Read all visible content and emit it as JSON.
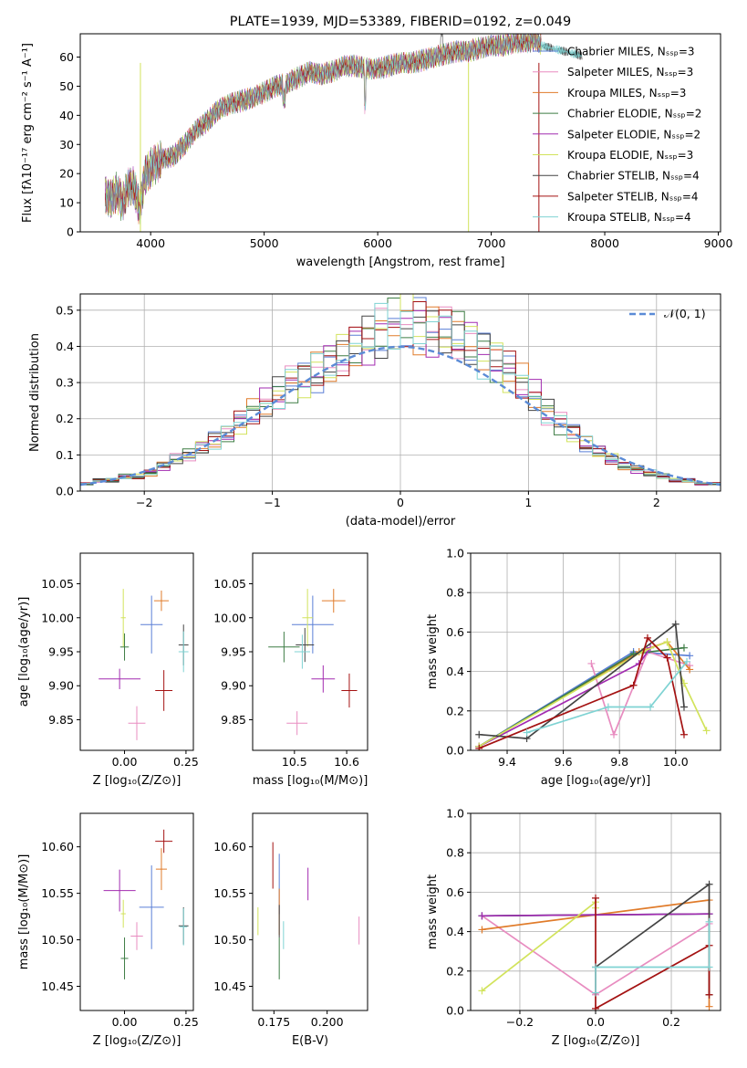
{
  "colors": [
    "#5a7fd6",
    "#e88cc0",
    "#e07b2a",
    "#3e7d45",
    "#a22bb0",
    "#d2e35c",
    "#444444",
    "#a41212",
    "#7fd3d3"
  ],
  "chart_data": [
    {
      "id": "spectrum",
      "type": "line",
      "title": "PLATE=1939, MJD=53389, FIBERID=0192, z=0.049",
      "xlabel": "wavelength [Angstrom, rest frame]",
      "ylabel": "Flux [fλ10⁻¹⁷ erg cm⁻² s⁻¹ A⁻¹]",
      "xlim": [
        3380,
        9020
      ],
      "ylim": [
        0,
        68
      ],
      "xticks": [
        4000,
        5000,
        6000,
        7000,
        8000,
        9000
      ],
      "yticks": [
        0,
        10,
        20,
        30,
        40,
        50,
        60
      ],
      "legend_position": "top-right",
      "legend": [
        "Chabrier MILES, Nₛₛₚ=3",
        "Salpeter MILES, Nₛₛₚ=3",
        "Kroupa MILES, Nₛₛₚ=3",
        "Chabrier ELODIE, Nₛₛₚ=2",
        "Salpeter ELODIE, Nₛₛₚ=2",
        "Kroupa ELODIE, Nₛₛₚ=3",
        "Chabrier STELIB, Nₛₛₚ=4",
        "Salpeter STELIB, Nₛₛₚ=4",
        "Kroupa STELIB, Nₛₛₚ=4"
      ],
      "x": [
        3600,
        3650,
        3700,
        3750,
        3800,
        3850,
        3900,
        3950,
        4000,
        4100,
        4200,
        4300,
        4400,
        4500,
        4600,
        4700,
        4800,
        4900,
        5000,
        5100,
        5200,
        5300,
        5400,
        5500,
        5600,
        5700,
        5800,
        5900,
        6000,
        6100,
        6200,
        6300,
        6400,
        6500,
        6600,
        6700,
        6800,
        6900,
        7000,
        7100,
        7200,
        7300,
        7400,
        7450
      ],
      "y": [
        13,
        11,
        14,
        10,
        15,
        16,
        8,
        19,
        22,
        25,
        26,
        30,
        35,
        38,
        42,
        44,
        45,
        46,
        48,
        50,
        51,
        53,
        55,
        54,
        55,
        57,
        57,
        56,
        56,
        57,
        58,
        58,
        59,
        60,
        61,
        62,
        62,
        63,
        64,
        64,
        65,
        65,
        66,
        64
      ]
    },
    {
      "id": "residual-histogram",
      "type": "line",
      "xlabel": "(data-model)/error",
      "ylabel": "Normed distribution",
      "xlim": [
        -2.5,
        2.5
      ],
      "ylim": [
        0,
        0.545
      ],
      "xticks": [
        -2,
        -1,
        0,
        1,
        2
      ],
      "yticks": [
        0.0,
        0.1,
        0.2,
        0.3,
        0.4,
        0.5
      ],
      "grid": true,
      "legend_position": "top-right",
      "reference_curve": "𝒩(0, 1)",
      "bin_width": 0.1,
      "bins_start": -2.5,
      "values": [
        0.02,
        0.03,
        0.03,
        0.04,
        0.04,
        0.05,
        0.07,
        0.09,
        0.1,
        0.12,
        0.14,
        0.16,
        0.19,
        0.22,
        0.24,
        0.27,
        0.3,
        0.31,
        0.33,
        0.35,
        0.38,
        0.4,
        0.42,
        0.44,
        0.45,
        0.47,
        0.46,
        0.45,
        0.44,
        0.43,
        0.41,
        0.38,
        0.36,
        0.33,
        0.3,
        0.26,
        0.22,
        0.19,
        0.16,
        0.13,
        0.11,
        0.09,
        0.07,
        0.06,
        0.05,
        0.04,
        0.03,
        0.03,
        0.02,
        0.02
      ]
    },
    {
      "id": "age-vs-Z",
      "type": "scatter",
      "xlabel": "Z [log₁₀(Z/Z⊙)]",
      "ylabel": "age  [log₁₀(age/yr)]",
      "xlim": [
        -0.18,
        0.28
      ],
      "ylim": [
        9.805,
        10.095
      ],
      "xticks": [
        0.0,
        0.25
      ],
      "yticks": [
        9.85,
        9.9,
        9.95,
        10.0,
        10.05
      ],
      "points": [
        {
          "x": 0.11,
          "y": 9.99,
          "xe": 0.09,
          "ye": 0.085
        },
        {
          "x": 0.05,
          "y": 9.845,
          "xe": 0.07,
          "ye": 0.05
        },
        {
          "x": 0.15,
          "y": 10.025,
          "xe": 0.06,
          "ye": 0.03
        },
        {
          "x": 0.0,
          "y": 9.957,
          "xe": 0.035,
          "ye": 0.04
        },
        {
          "x": -0.02,
          "y": 9.91,
          "xe": 0.17,
          "ye": 0.03
        },
        {
          "x": -0.005,
          "y": 10.0,
          "xe": 0.02,
          "ye": 0.085
        },
        {
          "x": 0.24,
          "y": 9.96,
          "xe": 0.04,
          "ye": 0.06
        },
        {
          "x": 0.16,
          "y": 9.893,
          "xe": 0.07,
          "ye": 0.06
        },
        {
          "x": 0.24,
          "y": 9.95,
          "xe": 0.04,
          "ye": 0.06
        }
      ]
    },
    {
      "id": "age-vs-mass",
      "type": "scatter",
      "xlabel": "mass [log₁₀(M/M⊙)]",
      "ylabel": "",
      "xlim": [
        10.42,
        10.64
      ],
      "ylim": [
        9.805,
        10.095
      ],
      "xticks": [
        10.5,
        10.6
      ],
      "yticks": [
        9.85,
        9.9,
        9.95,
        10.0,
        10.05
      ],
      "points": [
        {
          "x": 10.535,
          "y": 9.99,
          "xe": 0.08,
          "ye": 0.085
        },
        {
          "x": 10.505,
          "y": 9.845,
          "xe": 0.04,
          "ye": 0.035
        },
        {
          "x": 10.575,
          "y": 10.025,
          "xe": 0.045,
          "ye": 0.035
        },
        {
          "x": 10.48,
          "y": 9.957,
          "xe": 0.06,
          "ye": 0.045
        },
        {
          "x": 10.555,
          "y": 9.91,
          "xe": 0.045,
          "ye": 0.04
        },
        {
          "x": 10.525,
          "y": 10.0,
          "xe": 0.02,
          "ye": 0.085
        },
        {
          "x": 10.52,
          "y": 9.96,
          "xe": 0.035,
          "ye": 0.05
        },
        {
          "x": 10.605,
          "y": 9.893,
          "xe": 0.03,
          "ye": 0.05
        },
        {
          "x": 10.515,
          "y": 9.95,
          "xe": 0.03,
          "ye": 0.05
        }
      ]
    },
    {
      "id": "weight-vs-age",
      "type": "line",
      "xlabel": "age  [log₁₀(age/yr)]",
      "ylabel": "mass weight",
      "xlim": [
        9.27,
        10.16
      ],
      "ylim": [
        0,
        1
      ],
      "xticks": [
        9.4,
        9.6,
        9.8,
        10.0
      ],
      "yticks": [
        0.0,
        0.2,
        0.4,
        0.6,
        0.8,
        1.0
      ],
      "grid": true,
      "series": [
        {
          "x": [
            9.3,
            9.85,
            10.05
          ],
          "y": [
            0.02,
            0.5,
            0.48
          ]
        },
        {
          "x": [
            9.7,
            9.78,
            9.9,
            10.05
          ],
          "y": [
            0.44,
            0.08,
            0.5,
            0.43
          ]
        },
        {
          "x": [
            9.3,
            9.87,
            9.97,
            10.05
          ],
          "y": [
            0.02,
            0.5,
            0.55,
            0.41
          ]
        },
        {
          "x": [
            9.3,
            9.85,
            10.03
          ],
          "y": [
            0.02,
            0.49,
            0.52
          ]
        },
        {
          "x": [
            9.3,
            9.87,
            9.91
          ],
          "y": [
            0.02,
            0.44,
            0.52
          ]
        },
        {
          "x": [
            9.3,
            9.88,
            9.97,
            10.03,
            10.11
          ],
          "y": [
            0.02,
            0.5,
            0.55,
            0.34,
            0.1
          ]
        },
        {
          "x": [
            9.3,
            9.47,
            10.0,
            10.03
          ],
          "y": [
            0.08,
            0.06,
            0.64,
            0.22
          ]
        },
        {
          "x": [
            9.3,
            9.85,
            9.9,
            9.97,
            10.03
          ],
          "y": [
            0.01,
            0.33,
            0.57,
            0.47,
            0.08
          ]
        },
        {
          "x": [
            9.47,
            9.76,
            9.91,
            10.04
          ],
          "y": [
            0.09,
            0.22,
            0.22,
            0.45
          ]
        }
      ]
    },
    {
      "id": "mass-vs-Z",
      "type": "scatter",
      "xlabel": "Z [log₁₀(Z/Z⊙)]",
      "ylabel": "mass [log₁₀(M/M⊙)]",
      "xlim": [
        -0.18,
        0.28
      ],
      "ylim": [
        10.424,
        10.636
      ],
      "xticks": [
        0.0,
        0.25
      ],
      "yticks": [
        10.45,
        10.5,
        10.55,
        10.6
      ],
      "points": [
        {
          "x": 0.11,
          "y": 10.535,
          "xe": 0.1,
          "ye": 0.09
        },
        {
          "x": 0.05,
          "y": 10.504,
          "xe": 0.05,
          "ye": 0.03
        },
        {
          "x": 0.15,
          "y": 10.576,
          "xe": 0.045,
          "ye": 0.045
        },
        {
          "x": 0.0,
          "y": 10.48,
          "xe": 0.03,
          "ye": 0.045
        },
        {
          "x": -0.02,
          "y": 10.553,
          "xe": 0.13,
          "ye": 0.045
        },
        {
          "x": -0.005,
          "y": 10.528,
          "xe": 0.02,
          "ye": 0.03
        },
        {
          "x": 0.24,
          "y": 10.515,
          "xe": 0.04,
          "ye": 0.04
        },
        {
          "x": 0.16,
          "y": 10.606,
          "xe": 0.07,
          "ye": 0.025
        },
        {
          "x": 0.24,
          "y": 10.514,
          "xe": 0.03,
          "ye": 0.04
        }
      ]
    },
    {
      "id": "mass-vs-ebv",
      "type": "scatter",
      "xlabel": "E(B-V)",
      "ylabel": "",
      "xlim": [
        0.165,
        0.219
      ],
      "ylim": [
        10.424,
        10.636
      ],
      "xticks": [
        0.175,
        0.2
      ],
      "yticks": [
        10.45,
        10.5,
        10.55,
        10.6
      ],
      "points": [
        {
          "x": 0.1775,
          "y": 10.56,
          "xe": 0,
          "ye": 0.065
        },
        {
          "x": 0.215,
          "y": 10.51,
          "xe": 0,
          "ye": 0.03
        },
        {
          "x": 0.1775,
          "y": 10.53,
          "xe": 0,
          "ye": 0.05
        },
        {
          "x": 0.1775,
          "y": 10.48,
          "xe": 0,
          "ye": 0.045
        },
        {
          "x": 0.191,
          "y": 10.56,
          "xe": 0,
          "ye": 0.035
        },
        {
          "x": 0.1675,
          "y": 10.52,
          "xe": 0,
          "ye": 0.03
        },
        {
          "x": 0.1775,
          "y": 10.52,
          "xe": 0,
          "ye": 0.035
        },
        {
          "x": 0.1745,
          "y": 10.58,
          "xe": 0,
          "ye": 0.05
        },
        {
          "x": 0.1795,
          "y": 10.505,
          "xe": 0,
          "ye": 0.03
        }
      ]
    },
    {
      "id": "weight-vs-Z",
      "type": "line",
      "xlabel": "Z [log₁₀(Z/Z⊙)]",
      "ylabel": "mass weight",
      "xlim": [
        -0.33,
        0.33
      ],
      "ylim": [
        0,
        1
      ],
      "xticks": [
        -0.2,
        0.0,
        0.2
      ],
      "yticks": [
        0.0,
        0.2,
        0.4,
        0.6,
        0.8,
        1.0
      ],
      "grid": true,
      "series": [
        {
          "x": [
            -0.3,
            0.3
          ],
          "y": [
            0.48,
            0.49
          ]
        },
        {
          "x": [
            -0.3,
            0.0,
            0.3
          ],
          "y": [
            0.48,
            0.08,
            0.44
          ]
        },
        {
          "x": [
            -0.3,
            0.3,
            0.3
          ],
          "y": [
            0.41,
            0.56,
            0.02
          ]
        },
        {
          "x": [
            -0.3,
            0.3
          ],
          "y": [
            0.48,
            0.49
          ]
        },
        {
          "x": [
            -0.3,
            0.3
          ],
          "y": [
            0.48,
            0.49
          ]
        },
        {
          "x": [
            -0.3,
            0.0,
            0.0
          ],
          "y": [
            0.1,
            0.55,
            0.52
          ]
        },
        {
          "x": [
            0.0,
            0.3,
            0.3
          ],
          "y": [
            0.22,
            0.64,
            0.08
          ]
        },
        {
          "x": [
            0.0,
            0.0,
            0.3,
            0.3
          ],
          "y": [
            0.57,
            0.01,
            0.33,
            0.08
          ]
        },
        {
          "x": [
            0.0,
            0.0,
            0.3,
            0.3
          ],
          "y": [
            0.09,
            0.22,
            0.22,
            0.45
          ]
        }
      ]
    }
  ]
}
